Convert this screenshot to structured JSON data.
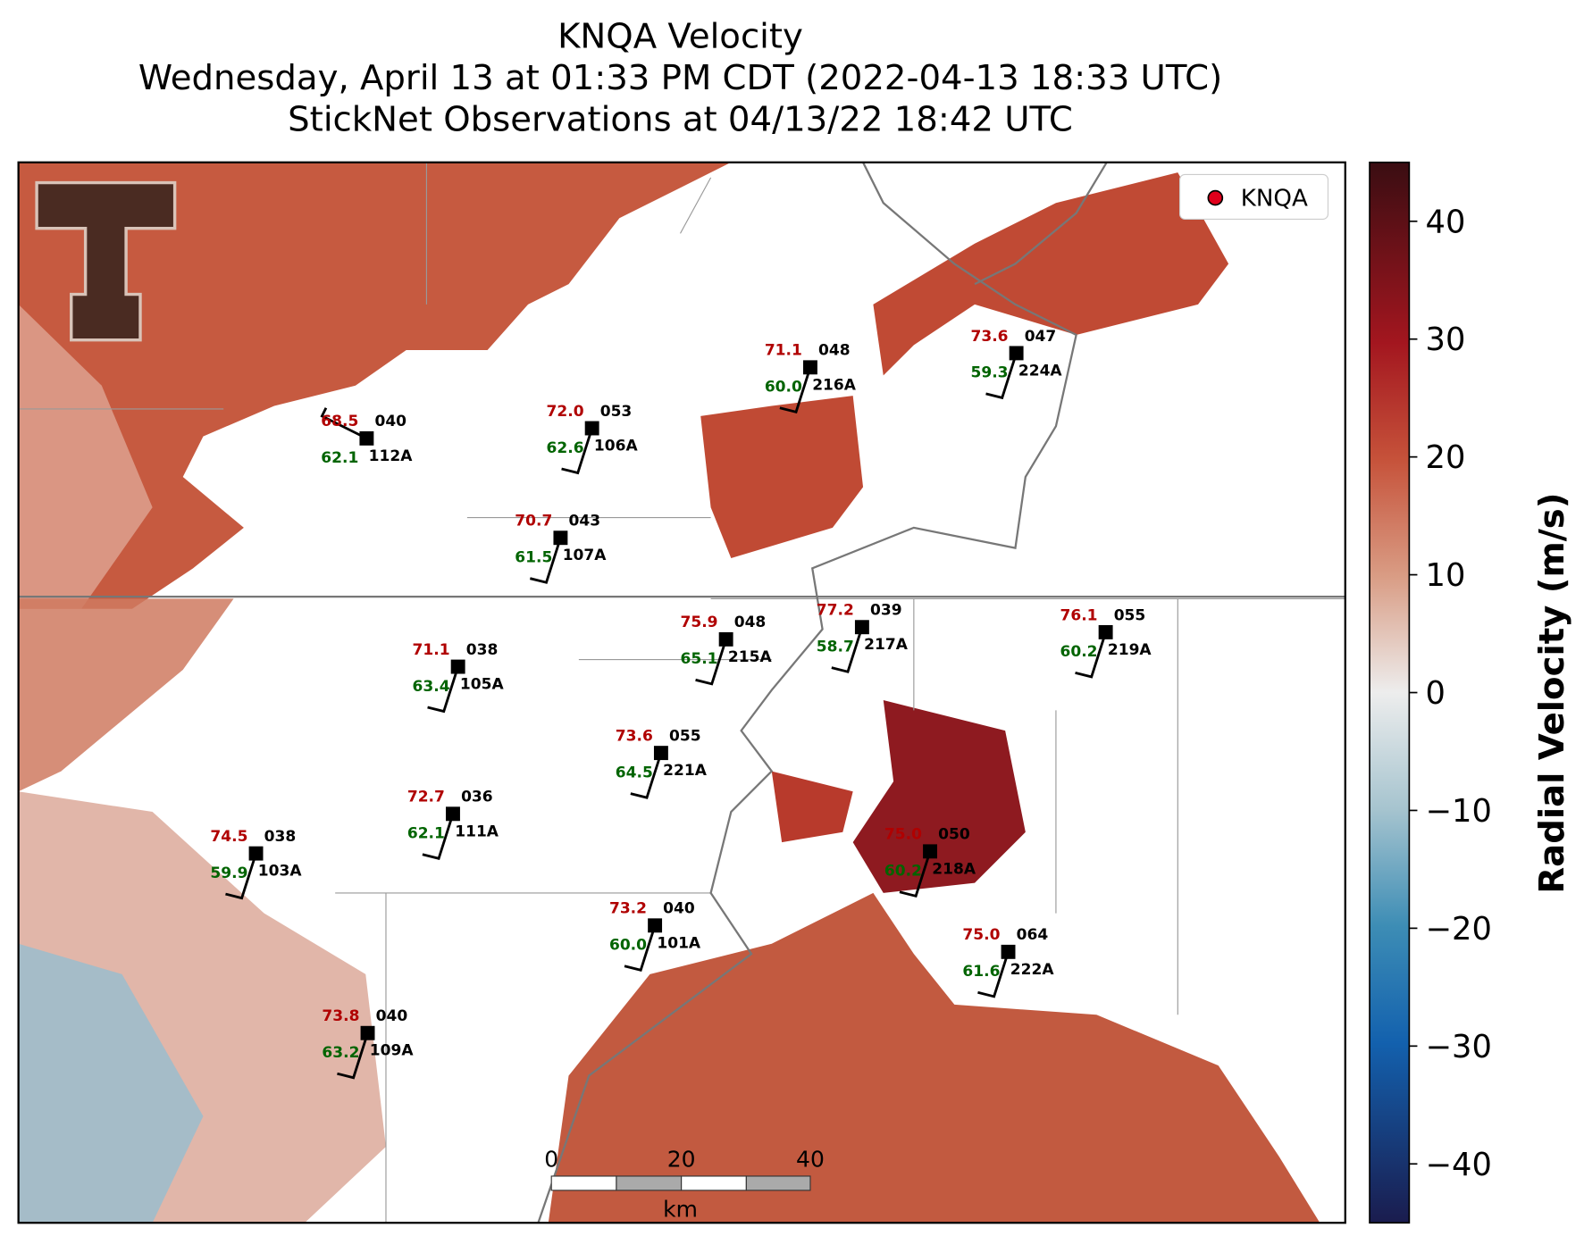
{
  "title": [
    "KNQA Velocity",
    "Wednesday, April 13 at 01:33 PM CDT (2022-04-13 18:33 UTC)",
    "StickNet Observations at 04/13/22 18:42 UTC"
  ],
  "legend": "KNQA",
  "colorbar": {
    "label": "Radial Velocity (m/s)",
    "lim": [
      -45,
      45
    ],
    "ticks": [
      40,
      30,
      20,
      10,
      0,
      {
        "value": -10,
        "label": "−10"
      },
      {
        "value": -20,
        "label": "−20"
      },
      {
        "value": -30,
        "label": "−30"
      },
      {
        "value": -40,
        "label": "−40"
      }
    ]
  },
  "scale_bar": {
    "ticks": [
      "0",
      "20",
      "40"
    ],
    "unit": "km"
  },
  "stations": [
    {
      "id": "112A",
      "temp": "68.5",
      "dew": "62.1",
      "pres": "040"
    },
    {
      "id": "106A",
      "temp": "72.0",
      "dew": "62.6",
      "pres": "053"
    },
    {
      "id": "216A",
      "temp": "71.1",
      "dew": "60.0",
      "pres": "048"
    },
    {
      "id": "224A",
      "temp": "73.6",
      "dew": "59.3",
      "pres": "047"
    },
    {
      "id": "107A",
      "temp": "70.7",
      "dew": "61.5",
      "pres": "043"
    },
    {
      "id": "215A",
      "temp": "75.9",
      "dew": "65.1",
      "pres": "048"
    },
    {
      "id": "217A",
      "temp": "77.2",
      "dew": "58.7",
      "pres": "039"
    },
    {
      "id": "219A",
      "temp": "76.1",
      "dew": "60.2",
      "pres": "055"
    },
    {
      "id": "105A",
      "temp": "71.1",
      "dew": "63.4",
      "pres": "038"
    },
    {
      "id": "221A",
      "temp": "73.6",
      "dew": "64.5",
      "pres": "055"
    },
    {
      "id": "111A",
      "temp": "72.7",
      "dew": "62.1",
      "pres": "036"
    },
    {
      "id": "218A",
      "temp": "75.0",
      "dew": "60.2",
      "pres": "050"
    },
    {
      "id": "103A",
      "temp": "74.5",
      "dew": "59.9",
      "pres": "038"
    },
    {
      "id": "101A",
      "temp": "73.2",
      "dew": "60.0",
      "pres": "040"
    },
    {
      "id": "222A",
      "temp": "75.0",
      "dew": "61.6",
      "pres": "064"
    },
    {
      "id": "109A",
      "temp": "73.8",
      "dew": "63.2",
      "pres": "040"
    }
  ]
}
